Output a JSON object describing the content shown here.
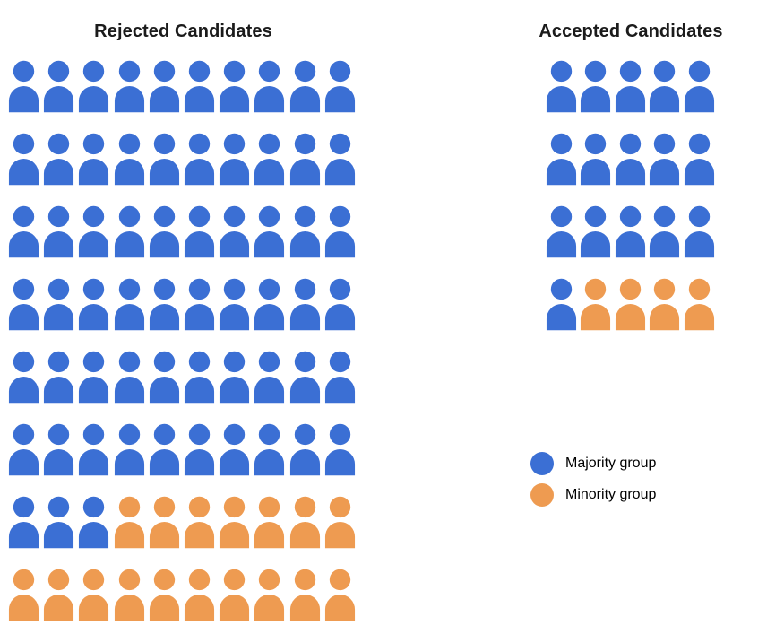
{
  "colors": {
    "majority": "#3B6FD4",
    "minority": "#EE9B51"
  },
  "panels": {
    "rejected": {
      "title": "Rejected Candidates",
      "columns": 10,
      "rows": [
        "MMMMMMMMMM",
        "MMMMMMMMMM",
        "MMMMMMMMMM",
        "MMMMMMMMMM",
        "MMMMMMMMMM",
        "MMMMMMMMMM",
        "MMMOOOOOOO",
        "OOOOOOOOOO"
      ]
    },
    "accepted": {
      "title": "Accepted Candidates",
      "columns": 5,
      "rows": [
        "MMMMM",
        "MMMMM",
        "MMMMM",
        "MOOOO"
      ]
    }
  },
  "legend": {
    "items": [
      {
        "id": "majority",
        "label": "Majority group",
        "color": "#3B6FD4"
      },
      {
        "id": "minority",
        "label": "Minority group",
        "color": "#EE9B51"
      }
    ]
  },
  "chart_data": {
    "type": "pictogram",
    "title": "",
    "categories": [
      "Rejected Candidates",
      "Accepted Candidates"
    ],
    "series": [
      {
        "name": "Majority group",
        "color": "#3B6FD4",
        "values": [
          63,
          16
        ]
      },
      {
        "name": "Minority group",
        "color": "#EE9B51",
        "values": [
          17,
          4
        ]
      }
    ],
    "totals": [
      80,
      20
    ],
    "grids": [
      {
        "category": "Rejected Candidates",
        "columns": 10,
        "rows": 8
      },
      {
        "category": "Accepted Candidates",
        "columns": 5,
        "rows": 4
      }
    ],
    "legend_entries": [
      "Majority group",
      "Minority group"
    ],
    "legend_position": "middle-right",
    "icon": "person",
    "icon_unit": 1
  }
}
